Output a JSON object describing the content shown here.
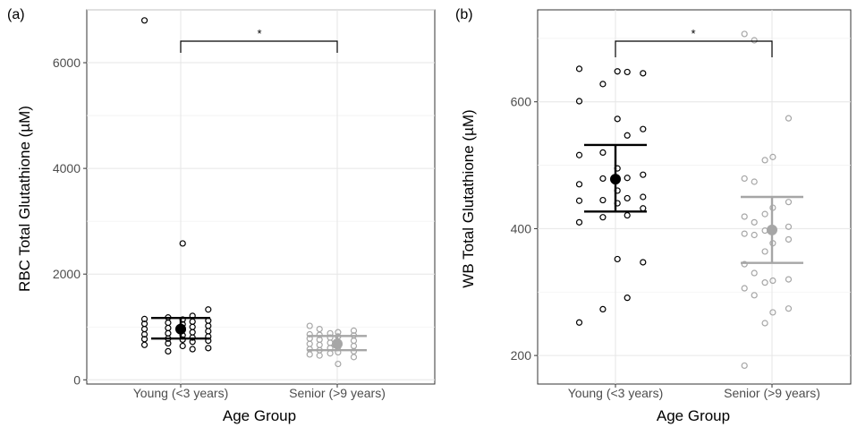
{
  "chart_data": [
    {
      "panel_label": "(a)",
      "type": "scatter",
      "xlabel": "Age Group",
      "ylabel": "RBC Total Glutathione (µM)",
      "categories": [
        "Young (<3 years)",
        "Senior (>9 years)"
      ],
      "ylim": [
        -80,
        7000
      ],
      "yticks": [
        0,
        2000,
        4000,
        6000
      ],
      "grid": true,
      "series": [
        {
          "category": "Young (<3 years)",
          "color": "#000000",
          "mean": 960,
          "ci": [
            780,
            1170
          ],
          "points": [
            6800,
            2580,
            1330,
            1210,
            1180,
            1150,
            1140,
            1120,
            1100,
            1080,
            1060,
            1050,
            1020,
            1000,
            980,
            960,
            940,
            920,
            900,
            880,
            860,
            840,
            820,
            800,
            780,
            770,
            760,
            740,
            720,
            690,
            660,
            640,
            600,
            580,
            540
          ]
        },
        {
          "category": "Senior (>9 years)",
          "color": "#a6a6a6",
          "mean": 680,
          "ci": [
            560,
            830
          ],
          "points": [
            1020,
            960,
            930,
            900,
            880,
            860,
            850,
            840,
            820,
            800,
            780,
            760,
            740,
            720,
            700,
            680,
            660,
            640,
            620,
            600,
            580,
            560,
            540,
            520,
            500,
            480,
            460,
            430,
            300
          ]
        }
      ],
      "annotation": {
        "text": "*",
        "type": "significance-bracket"
      }
    },
    {
      "panel_label": "(b)",
      "type": "scatter",
      "xlabel": "Age Group",
      "ylabel": "WB Total Glutathione (µM)",
      "categories": [
        "Young (<3 years)",
        "Senior (>9 years)"
      ],
      "ylim": [
        155,
        745
      ],
      "yticks": [
        200,
        400,
        600
      ],
      "grid": true,
      "series": [
        {
          "category": "Young (<3 years)",
          "color": "#000000",
          "mean": 478,
          "ci": [
            427,
            532
          ],
          "points": [
            652,
            648,
            645,
            647,
            628,
            601,
            573,
            557,
            547,
            520,
            516,
            495,
            485,
            480,
            479,
            470,
            460,
            450,
            448,
            445,
            444,
            440,
            432,
            421,
            418,
            410,
            352,
            347,
            291,
            273,
            252
          ]
        },
        {
          "category": "Senior (>9 years)",
          "color": "#a6a6a6",
          "mean": 398,
          "ci": [
            346,
            450
          ],
          "points": [
            707,
            697,
            574,
            513,
            508,
            479,
            474,
            442,
            433,
            423,
            419,
            410,
            403,
            400,
            397,
            392,
            390,
            383,
            377,
            364,
            344,
            330,
            320,
            318,
            315,
            306,
            295,
            274,
            268,
            251,
            184
          ]
        }
      ],
      "annotation": {
        "text": "*",
        "type": "significance-bracket"
      }
    }
  ]
}
